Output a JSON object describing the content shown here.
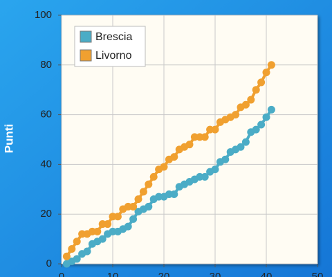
{
  "chart_data": {
    "type": "line",
    "ylabel": "Punti",
    "x": [
      1,
      2,
      3,
      4,
      5,
      6,
      7,
      8,
      9,
      10,
      11,
      12,
      13,
      14,
      15,
      16,
      17,
      18,
      19,
      20,
      21,
      22,
      23,
      24,
      25,
      26,
      27,
      28,
      29,
      30,
      31,
      32,
      33,
      34,
      35,
      36,
      37,
      38,
      39,
      40,
      41
    ],
    "series": [
      {
        "name": "Brescia",
        "color": "#4bacc6",
        "values": [
          0,
          1,
          2,
          4,
          5,
          8,
          9,
          10,
          12,
          13,
          13,
          14,
          15,
          18,
          21,
          22,
          23,
          26,
          27,
          27,
          28,
          28,
          31,
          32,
          33,
          34,
          35,
          35,
          37,
          38,
          41,
          42,
          45,
          46,
          47,
          49,
          53,
          54,
          56,
          59,
          62
        ]
      },
      {
        "name": "Livorno",
        "color": "#f0a030",
        "values": [
          3,
          6,
          9,
          12,
          12,
          13,
          13,
          16,
          16,
          19,
          19,
          22,
          23,
          23,
          26,
          29,
          32,
          35,
          38,
          39,
          42,
          43,
          46,
          47,
          48,
          51,
          51,
          51,
          54,
          54,
          57,
          58,
          59,
          60,
          63,
          64,
          66,
          70,
          73,
          77,
          80
        ]
      }
    ],
    "xlim": [
      0,
      50
    ],
    "xticks": [
      0,
      10,
      20,
      30,
      40,
      50
    ],
    "ylim": [
      0,
      100
    ],
    "yticks": [
      0,
      20,
      40,
      60,
      80,
      100
    ],
    "grid": true,
    "legend": "top-left"
  }
}
